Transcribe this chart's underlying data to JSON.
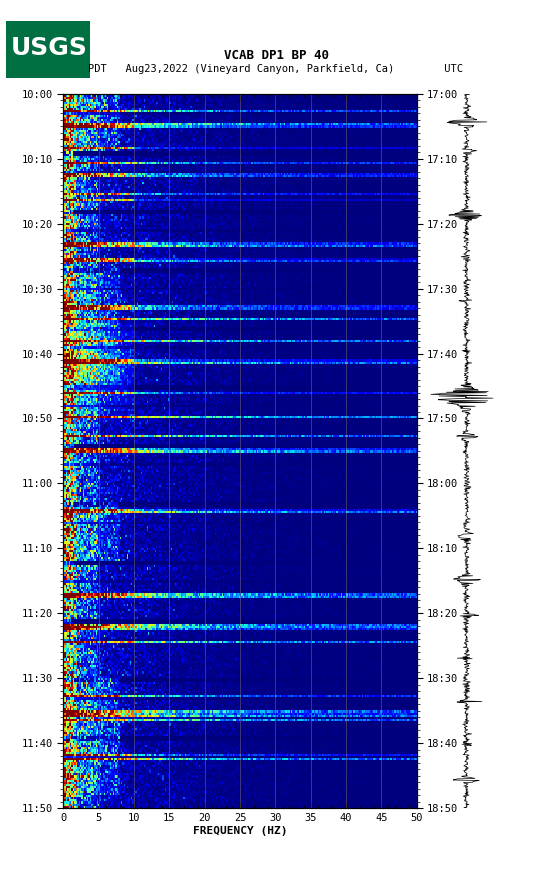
{
  "title_line1": "VCAB DP1 BP 40",
  "title_line2": "PDT   Aug23,2022 (Vineyard Canyon, Parkfield, Ca)        UTC",
  "xlabel": "FREQUENCY (HZ)",
  "freq_min": 0,
  "freq_max": 50,
  "time_left_labels": [
    "10:00",
    "10:10",
    "10:20",
    "10:30",
    "10:40",
    "10:50",
    "11:00",
    "11:10",
    "11:20",
    "11:30",
    "11:40",
    "11:50"
  ],
  "time_right_labels": [
    "17:00",
    "17:10",
    "17:20",
    "17:30",
    "17:40",
    "17:50",
    "18:00",
    "18:10",
    "18:20",
    "18:30",
    "18:40",
    "18:50"
  ],
  "freq_ticks": [
    0,
    5,
    10,
    15,
    20,
    25,
    30,
    35,
    40,
    45,
    50
  ],
  "bg_color": "#ffffff",
  "colormap": "jet",
  "waveform_color": "#000000",
  "usgs_green": "#006f41"
}
